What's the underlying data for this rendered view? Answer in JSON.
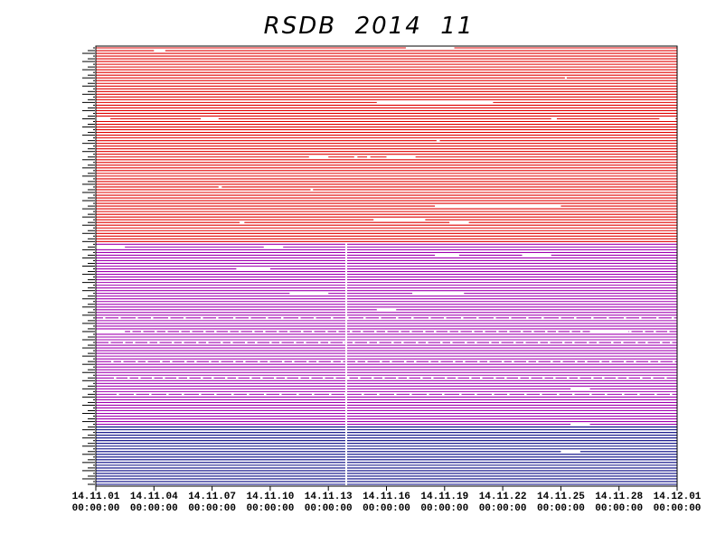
{
  "chart_data": {
    "type": "line",
    "title": "RSDB  2014  11",
    "xlabel": "",
    "ylabel": "",
    "x_ticks": [
      {
        "date": "2014-11-01",
        "label_date": "14.11.01",
        "label_time": "00:00:00"
      },
      {
        "date": "2014-11-04",
        "label_date": "14.11.04",
        "label_time": "00:00:00"
      },
      {
        "date": "2014-11-07",
        "label_date": "14.11.07",
        "label_time": "00:00:00"
      },
      {
        "date": "2014-11-10",
        "label_date": "14.11.10",
        "label_time": "00:00:00"
      },
      {
        "date": "2014-11-13",
        "label_date": "14.11.13",
        "label_time": "00:00:00"
      },
      {
        "date": "2014-11-16",
        "label_date": "14.11.16",
        "label_time": "00:00:00"
      },
      {
        "date": "2014-11-19",
        "label_date": "14.11.19",
        "label_time": "00:00:00"
      },
      {
        "date": "2014-11-22",
        "label_date": "14.11.22",
        "label_time": "00:00:00"
      },
      {
        "date": "2014-11-25",
        "label_date": "14.11.25",
        "label_time": "00:00:00"
      },
      {
        "date": "2014-11-28",
        "label_date": "14.11.28",
        "label_time": "00:00:00"
      },
      {
        "date": "2014-12-01",
        "label_date": "14.12.01",
        "label_time": "00:00:00"
      }
    ],
    "xlim": [
      "2014-11-01",
      "2014-12-01"
    ],
    "grid": false,
    "legend": "none",
    "series_groups": [
      {
        "color": "#e00000",
        "count": 72
      },
      {
        "color": "#a000b0",
        "count": 67
      },
      {
        "color": "#000080",
        "count": 22
      }
    ],
    "global_outage": {
      "start": "2014-11-13T21:00",
      "end": "2014-11-13T22:00"
    },
    "gaps": [
      {
        "row": 0,
        "start": "2014-11-17T00:00",
        "end": "2014-11-19T12:00"
      },
      {
        "row": 1,
        "start": "2014-11-04T00:00",
        "end": "2014-11-04T14:00"
      },
      {
        "row": 11,
        "start": "2014-11-25T05:00",
        "end": "2014-11-25T07:00"
      },
      {
        "row": 20,
        "start": "2014-11-15T12:00",
        "end": "2014-11-21T12:00"
      },
      {
        "row": 26,
        "start": "2014-11-01T00:00",
        "end": "2014-11-01T18:00"
      },
      {
        "row": 26,
        "start": "2014-11-06T10:00",
        "end": "2014-11-07T08:00"
      },
      {
        "row": 26,
        "start": "2014-11-24T12:00",
        "end": "2014-11-24T19:00"
      },
      {
        "row": 26,
        "start": "2014-11-30T02:00",
        "end": "2014-11-30T22:00"
      },
      {
        "row": 34,
        "start": "2014-11-18T14:00",
        "end": "2014-11-18T18:00"
      },
      {
        "row": 40,
        "start": "2014-11-12T00:00",
        "end": "2014-11-13T00:00"
      },
      {
        "row": 40,
        "start": "2014-11-14T08:00",
        "end": "2014-11-14T12:00"
      },
      {
        "row": 40,
        "start": "2014-11-15T00:00",
        "end": "2014-11-15T04:00"
      },
      {
        "row": 40,
        "start": "2014-11-16T00:00",
        "end": "2014-11-17T12:00"
      },
      {
        "row": 51,
        "start": "2014-11-07T08:00",
        "end": "2014-11-07T12:00"
      },
      {
        "row": 52,
        "start": "2014-11-12T02:00",
        "end": "2014-11-12T05:00"
      },
      {
        "row": 58,
        "start": "2014-11-18T12:00",
        "end": "2014-11-25T00:00"
      },
      {
        "row": 63,
        "start": "2014-11-15T08:00",
        "end": "2014-11-18T00:00"
      },
      {
        "row": 64,
        "start": "2014-11-19T06:00",
        "end": "2014-11-20T06:00"
      },
      {
        "row": 64,
        "start": "2014-11-08T10:00",
        "end": "2014-11-08T16:00"
      },
      {
        "row": 73,
        "start": "2014-11-01T00:00",
        "end": "2014-11-02T12:00"
      },
      {
        "row": 73,
        "start": "2014-11-09T16:00",
        "end": "2014-11-10T16:00"
      },
      {
        "row": 76,
        "start": "2014-11-18T12:00",
        "end": "2014-11-19T18:00"
      },
      {
        "row": 76,
        "start": "2014-11-23T00:00",
        "end": "2014-11-24T12:00"
      },
      {
        "row": 81,
        "start": "2014-11-08T06:00",
        "end": "2014-11-10T00:00"
      },
      {
        "row": 90,
        "start": "2014-11-11T00:00",
        "end": "2014-11-13T00:00"
      },
      {
        "row": 90,
        "start": "2014-11-17T08:00",
        "end": "2014-11-20T00:00"
      },
      {
        "row": 96,
        "start": "2014-11-15T12:00",
        "end": "2014-11-16T12:00"
      },
      {
        "row": 104,
        "start": "2014-11-01T00:00",
        "end": "2014-11-02T12:00"
      },
      {
        "row": 104,
        "start": "2014-11-26T12:00",
        "end": "2014-11-28T12:00"
      },
      {
        "row": 125,
        "start": "2014-11-25T12:00",
        "end": "2014-11-26T12:00"
      },
      {
        "row": 138,
        "start": "2014-11-25T12:00",
        "end": "2014-11-26T12:00"
      },
      {
        "row": 148,
        "start": "2014-11-25T00:00",
        "end": "2014-11-26T00:00"
      }
    ],
    "dotted_rows": [
      99,
      104,
      108,
      115,
      121,
      127
    ]
  }
}
